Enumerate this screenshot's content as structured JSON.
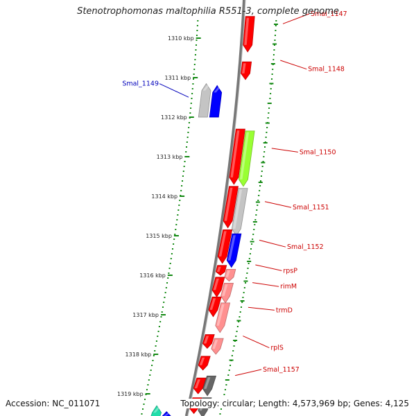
{
  "title": "Stenotrophomonas maltophilia R551-3, complete genome",
  "footer": {
    "accession": "Accession: NC_011071",
    "topology": "Topology: circular; Length: 4,573,969 bp; Genes: 4,125"
  },
  "colors": {
    "red_gene": "#ff0000",
    "light_red_gene": "#ff9090",
    "blue_gene": "#0000ff",
    "gray_gene": "#c4c4c4",
    "dark_gray_gene": "#666666",
    "green_gene": "#99ff33",
    "teal_gene": "#22ddaa",
    "steel_blue_gene": "#3a78c8",
    "tick_green": "#118811",
    "reverse_label": "#cc0000",
    "forward_label": "#0000bb",
    "backbone": "#777777"
  },
  "kbp_ticks": [
    {
      "label": "1310 kbp",
      "kbp": 1310
    },
    {
      "label": "1311 kbp",
      "kbp": 1311
    },
    {
      "label": "1312 kbp",
      "kbp": 1312
    },
    {
      "label": "1313 kbp",
      "kbp": 1313
    },
    {
      "label": "1314 kbp",
      "kbp": 1314
    },
    {
      "label": "1315 kbp",
      "kbp": 1315
    },
    {
      "label": "1316 kbp",
      "kbp": 1316
    },
    {
      "label": "1317 kbp",
      "kbp": 1317
    },
    {
      "label": "1318 kbp",
      "kbp": 1318
    },
    {
      "label": "1319 kbp",
      "kbp": 1319
    }
  ],
  "genes": [
    {
      "name": "Smal_1147",
      "strand": "reverse",
      "color": "red",
      "start_kbp": 1309.45,
      "end_kbp": 1310.35,
      "labeled": true,
      "label_kbp": 1309.7
    },
    {
      "name": "Smal_1148",
      "strand": "reverse",
      "color": "red",
      "start_kbp": 1310.6,
      "end_kbp": 1311.05,
      "labeled": true,
      "label_kbp": 1311.1
    },
    {
      "name": "Smal_1149",
      "strand": "forward",
      "color": "blue",
      "start_kbp": 1311.2,
      "end_kbp": 1312.0,
      "labeled": true,
      "label_kbp": 1311.45
    },
    {
      "name": "",
      "strand": "forward",
      "color": "gray",
      "start_kbp": 1311.15,
      "end_kbp": 1312.0,
      "labeled": false,
      "label_kbp": 0
    },
    {
      "name": "",
      "strand": "reverse",
      "color": "red",
      "start_kbp": 1312.3,
      "end_kbp": 1313.7,
      "labeled": false,
      "label_kbp": 0
    },
    {
      "name": "Smal_1150",
      "strand": "reverse",
      "color": "green",
      "start_kbp": 1312.35,
      "end_kbp": 1313.75,
      "labeled": true,
      "label_kbp": 1313.2
    },
    {
      "name": "",
      "strand": "reverse",
      "color": "red",
      "start_kbp": 1313.75,
      "end_kbp": 1314.8,
      "labeled": false,
      "label_kbp": 0
    },
    {
      "name": "Smal_1151",
      "strand": "reverse",
      "color": "gray",
      "start_kbp": 1313.8,
      "end_kbp": 1315.0,
      "labeled": true,
      "label_kbp": 1314.6
    },
    {
      "name": "",
      "strand": "reverse",
      "color": "red",
      "start_kbp": 1314.85,
      "end_kbp": 1315.7,
      "labeled": false,
      "label_kbp": 0
    },
    {
      "name": "Smal_1152",
      "strand": "reverse",
      "color": "blue",
      "start_kbp": 1314.95,
      "end_kbp": 1315.8,
      "labeled": true,
      "label_kbp": 1315.6
    },
    {
      "name": "",
      "strand": "reverse",
      "color": "red",
      "start_kbp": 1315.75,
      "end_kbp": 1316.0,
      "labeled": false,
      "label_kbp": 0
    },
    {
      "name": "rpsP",
      "strand": "reverse",
      "color": "light_red",
      "start_kbp": 1315.85,
      "end_kbp": 1316.15,
      "labeled": true,
      "label_kbp": 1316.2
    },
    {
      "name": "",
      "strand": "reverse",
      "color": "red",
      "start_kbp": 1316.05,
      "end_kbp": 1316.55,
      "labeled": false,
      "label_kbp": 0
    },
    {
      "name": "rimM",
      "strand": "reverse",
      "color": "light_red",
      "start_kbp": 1316.2,
      "end_kbp": 1316.7,
      "labeled": true,
      "label_kbp": 1316.6
    },
    {
      "name": "",
      "strand": "reverse",
      "color": "red",
      "start_kbp": 1316.55,
      "end_kbp": 1317.05,
      "labeled": false,
      "label_kbp": 0
    },
    {
      "name": "trmD",
      "strand": "reverse",
      "color": "light_red",
      "start_kbp": 1316.7,
      "end_kbp": 1317.45,
      "labeled": true,
      "label_kbp": 1317.2
    },
    {
      "name": "",
      "strand": "reverse",
      "color": "red",
      "start_kbp": 1317.5,
      "end_kbp": 1317.85,
      "labeled": false,
      "label_kbp": 0
    },
    {
      "name": "rplS",
      "strand": "reverse",
      "color": "light_red",
      "start_kbp": 1317.6,
      "end_kbp": 1318.0,
      "labeled": true,
      "label_kbp": 1318.15
    },
    {
      "name": "",
      "strand": "reverse",
      "color": "red",
      "start_kbp": 1318.05,
      "end_kbp": 1318.4,
      "labeled": false,
      "label_kbp": 0
    },
    {
      "name": "Smal_1157",
      "strand": "reverse",
      "color": "dark_gray",
      "start_kbp": 1318.55,
      "end_kbp": 1319.05,
      "labeled": true,
      "label_kbp": 1318.7
    },
    {
      "name": "",
      "strand": "reverse",
      "color": "red",
      "start_kbp": 1318.6,
      "end_kbp": 1319.0,
      "labeled": false,
      "label_kbp": 0
    },
    {
      "name": "",
      "strand": "reverse",
      "color": "red",
      "start_kbp": 1319.1,
      "end_kbp": 1319.5,
      "labeled": false,
      "label_kbp": 0
    },
    {
      "name": "",
      "strand": "reverse",
      "color": "dark_gray",
      "start_kbp": 1319.1,
      "end_kbp": 1319.6,
      "labeled": false,
      "label_kbp": 0
    },
    {
      "name": "",
      "strand": "forward",
      "color": "teal",
      "start_kbp": 1319.3,
      "end_kbp": 1319.8,
      "labeled": false,
      "label_kbp": 0
    },
    {
      "name": "",
      "strand": "forward",
      "color": "blue",
      "start_kbp": 1319.45,
      "end_kbp": 1319.8,
      "labeled": false,
      "label_kbp": 0
    }
  ]
}
